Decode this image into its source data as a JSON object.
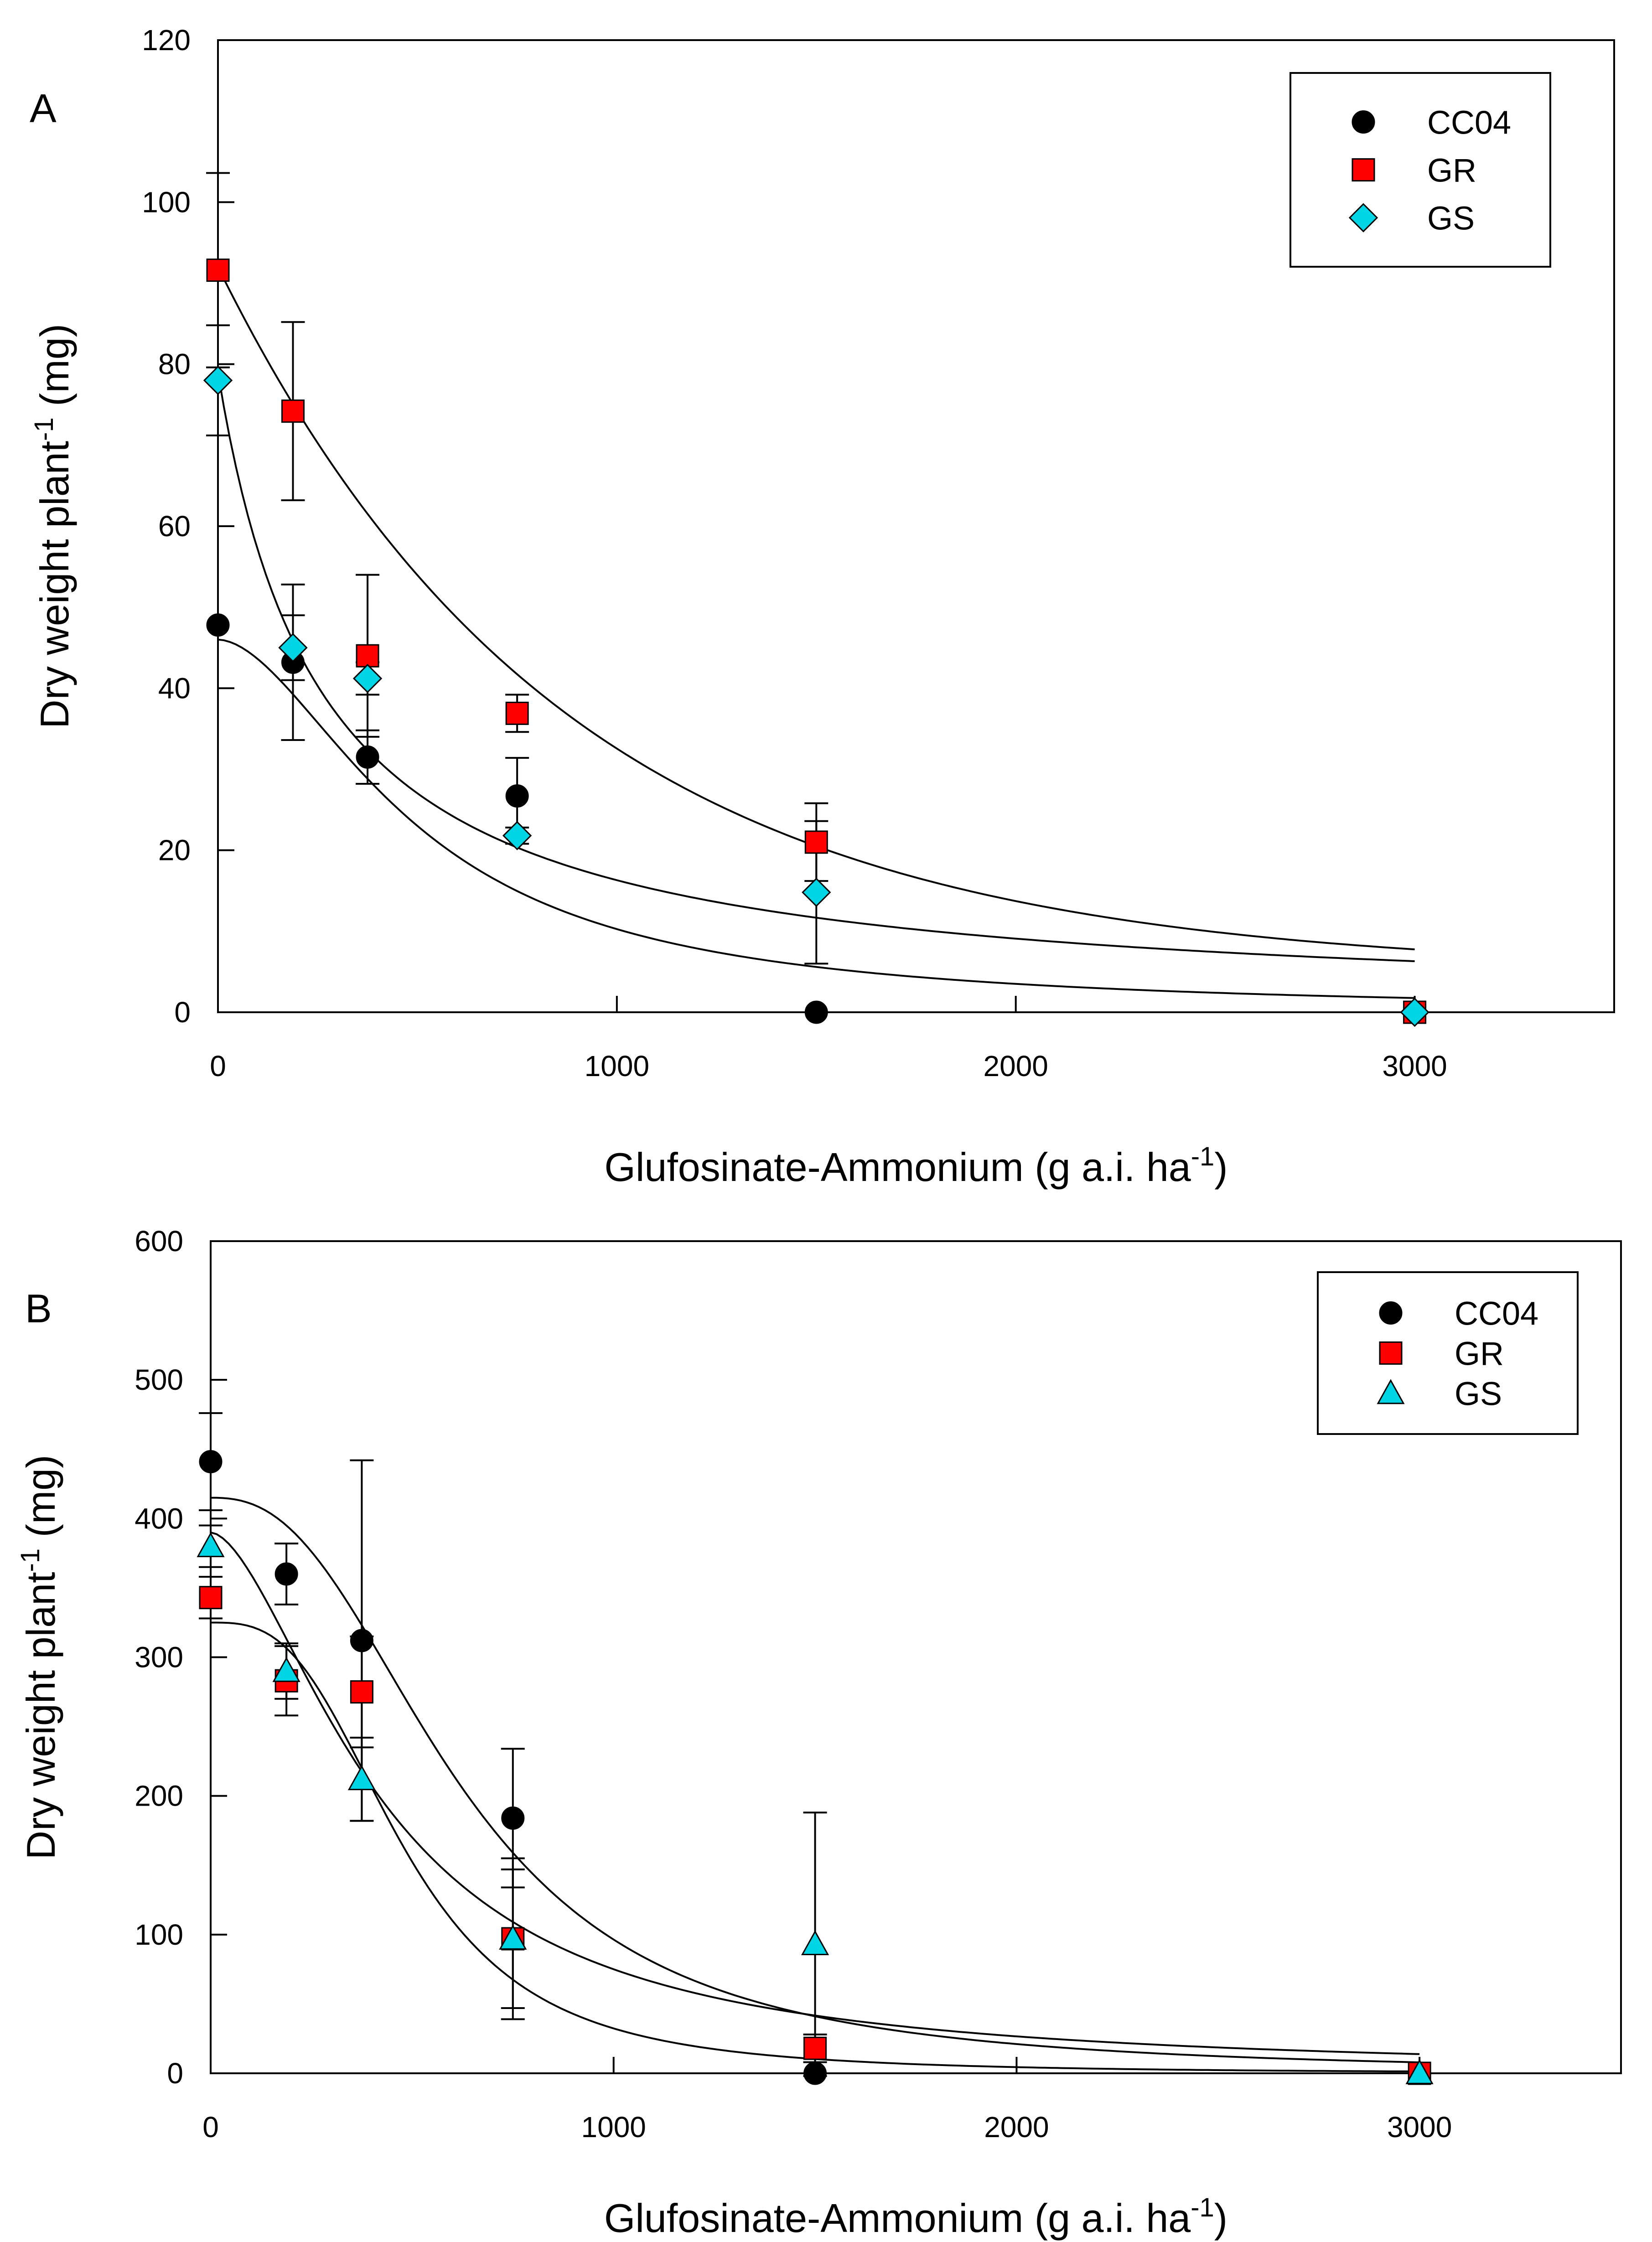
{
  "chart_data": [
    {
      "type": "scatter",
      "panel_label": "A",
      "title": "",
      "xlabel": "Glufosinate-Ammonium (g a.i. ha",
      "xlabel_sup": "-1",
      "xlabel_end": ")",
      "ylabel": "Dry weight plant",
      "ylabel_sup": "-1",
      "ylabel_end": " (mg)",
      "xlim": [
        0,
        3500
      ],
      "ylim": [
        0,
        120
      ],
      "xticks": [
        0,
        1000,
        2000,
        3000
      ],
      "xtick_labels": [
        "0",
        "1000",
        "2000",
        "3000"
      ],
      "yticks": [
        0,
        20,
        40,
        60,
        80,
        100,
        120
      ],
      "ytick_labels": [
        "0",
        "20",
        "40",
        "60",
        "80",
        "100",
        "120"
      ],
      "legend_position": "top-right",
      "series": [
        {
          "name": "CC04",
          "marker": "circle",
          "color": "#000000",
          "x": [
            0,
            188,
            375,
            750,
            1500,
            3000
          ],
          "y": [
            47.8,
            43.2,
            31.5,
            26.7,
            0.0,
            0.0
          ],
          "err": [
            0,
            9.6,
            3.3,
            4.7,
            0,
            0
          ],
          "fit": {
            "model": "log-logistic",
            "top": 46,
            "ec50": 500,
            "slope": 1.8
          }
        },
        {
          "name": "GR",
          "marker": "square",
          "color": "#ff0000",
          "x": [
            0,
            188,
            375,
            750,
            1500,
            3000
          ],
          "y": [
            91.6,
            74.2,
            44.0,
            36.9,
            21.0,
            0.0
          ],
          "err": [
            12.0,
            11.0,
            10.0,
            2.3,
            4.8,
            0
          ],
          "fit": {
            "model": "exp-decay",
            "top": 92,
            "k": 0.00115,
            "bottom": 5
          }
        },
        {
          "name": "GS",
          "marker": "diamond",
          "color": "#00d5e5",
          "x": [
            0,
            188,
            375,
            750,
            1500,
            3000
          ],
          "y": [
            78.0,
            45.0,
            41.2,
            21.8,
            14.8,
            0.0
          ],
          "err": [
            6.8,
            4.0,
            2.0,
            1.0,
            8.8,
            0
          ],
          "fit": {
            "model": "log-logistic",
            "top": 79,
            "ec50": 260,
            "slope": 1.0
          }
        }
      ]
    },
    {
      "type": "scatter",
      "panel_label": "B",
      "title": "",
      "xlabel": "Glufosinate-Ammonium (g a.i. ha",
      "xlabel_sup": "-1",
      "xlabel_end": ")",
      "ylabel": "Dry weight plant",
      "ylabel_sup": "-1",
      "ylabel_end": " (mg)",
      "xlim": [
        0,
        3500
      ],
      "ylim": [
        0,
        600
      ],
      "xticks": [
        0,
        1000,
        2000,
        3000
      ],
      "xtick_labels": [
        "0",
        "1000",
        "2000",
        "3000"
      ],
      "yticks": [
        0,
        100,
        200,
        300,
        400,
        500,
        600
      ],
      "ytick_labels": [
        "0",
        "100",
        "200",
        "300",
        "400",
        "500",
        "600"
      ],
      "legend_position": "top-right",
      "series": [
        {
          "name": "CC04",
          "marker": "circle",
          "color": "#000000",
          "x": [
            0,
            188,
            375,
            750,
            1500,
            3000
          ],
          "y": [
            441,
            360,
            312,
            184,
            0,
            0
          ],
          "err": [
            35,
            22,
            130,
            50,
            0,
            0
          ],
          "fit": {
            "model": "log-logistic",
            "top": 415,
            "ec50": 620,
            "slope": 2.5
          }
        },
        {
          "name": "GR",
          "marker": "square",
          "color": "#ff0000",
          "x": [
            0,
            188,
            375,
            750,
            1500,
            3000
          ],
          "y": [
            343,
            283,
            275,
            97,
            18,
            0
          ],
          "err": [
            15,
            25,
            40,
            58,
            10,
            0
          ],
          "fit": {
            "model": "log-logistic",
            "top": 325,
            "ec50": 480,
            "slope": 3.0
          }
        },
        {
          "name": "GS",
          "marker": "triangle",
          "color": "#00d5e5",
          "x": [
            0,
            188,
            375,
            750,
            1500,
            3000
          ],
          "y": [
            380,
            290,
            212,
            97,
            93,
            0
          ],
          "err": [
            15,
            20,
            30,
            50,
            95,
            0
          ],
          "fit": {
            "model": "log-logistic",
            "top": 390,
            "ec50": 430,
            "slope": 1.7
          }
        }
      ]
    }
  ]
}
